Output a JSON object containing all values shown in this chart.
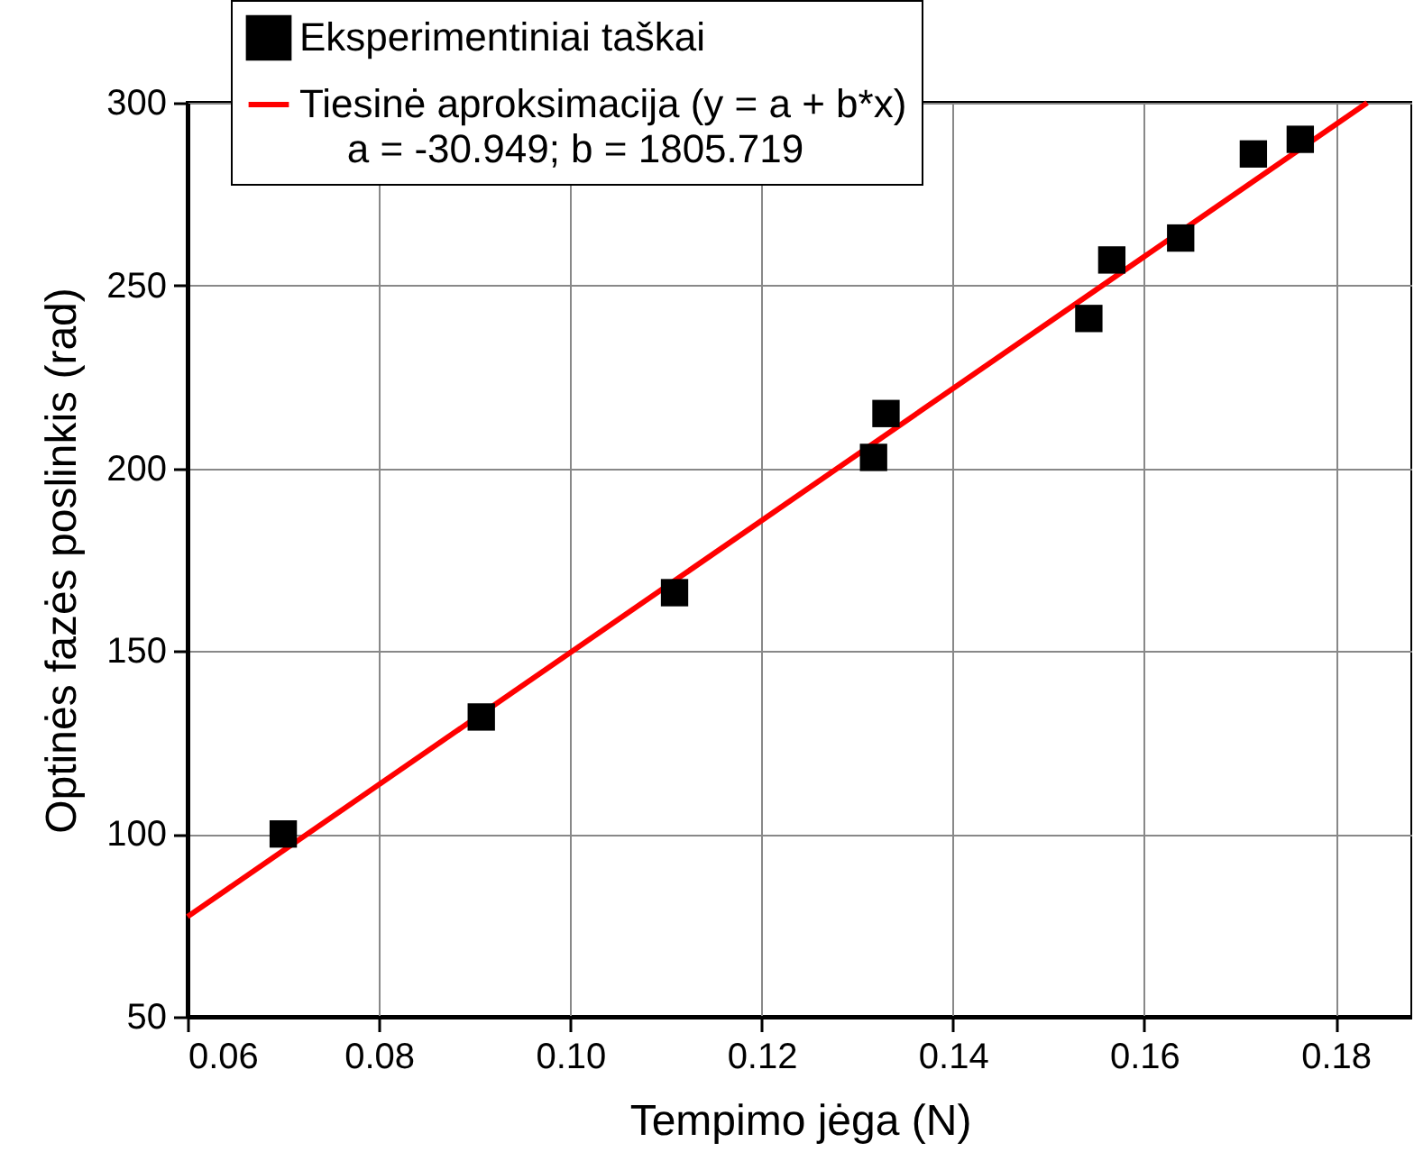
{
  "chart_data": {
    "type": "scatter",
    "xlabel": "Tempimo jėga (N)",
    "ylabel": "Optinės fazės poslinkis (rad)",
    "xlim": [
      0.06,
      0.188
    ],
    "ylim": [
      50,
      300
    ],
    "xticks": [
      0.06,
      0.08,
      {
        "value": 0.1,
        "label": "0.10"
      },
      0.12,
      0.14,
      0.16,
      0.18
    ],
    "yticks": [
      50,
      100,
      150,
      200,
      250,
      300
    ],
    "grid": true,
    "legend": "top",
    "annotations": [
      "a = -30.949; b = 1805.719"
    ],
    "series": [
      {
        "name": "Eksperimentiniai taškai",
        "marker": "square",
        "color": "#000000",
        "x": [
          0.07,
          0.0907,
          0.1109,
          0.1317,
          0.133,
          0.1542,
          0.1566,
          0.1638,
          0.1714,
          0.1763
        ],
        "values": [
          100,
          132,
          166,
          203,
          215,
          241,
          257,
          263,
          286,
          290
        ]
      },
      {
        "name": "Tiesinė aproksimacija (y = a + b*x)",
        "type": "line",
        "line_style": "solid",
        "color": "#ff0000",
        "x": [
          0.06,
          0.1833
        ],
        "values": [
          77.4,
          300
        ]
      }
    ]
  }
}
